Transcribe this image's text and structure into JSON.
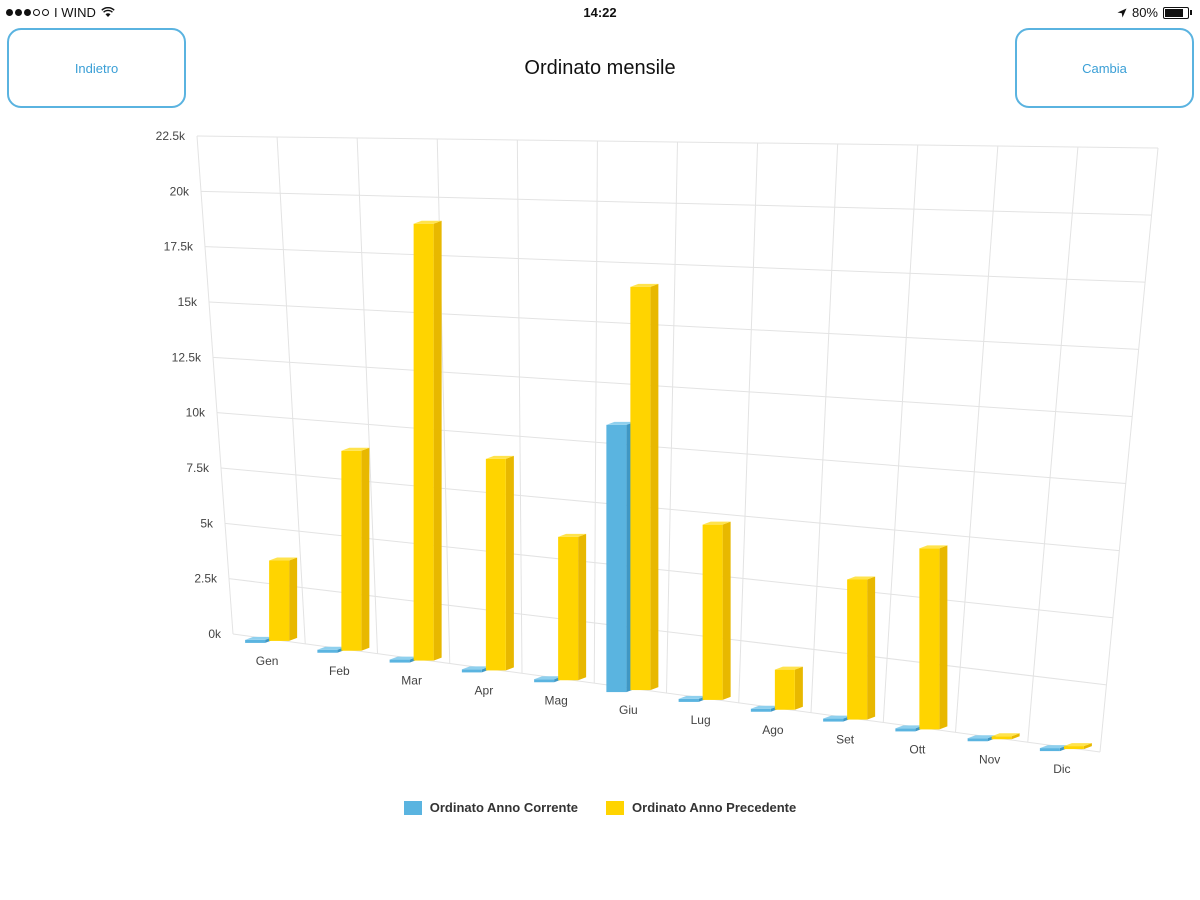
{
  "status_bar": {
    "carrier": "I WIND",
    "time": "14:22",
    "battery": "80%",
    "battery_level": 0.8
  },
  "header": {
    "back_label": "Indietro",
    "title": "Ordinato mensile",
    "change_label": "Cambia"
  },
  "icons": {
    "wifi": "wifi-icon",
    "location": "location-arrow-icon",
    "battery": "battery-icon"
  },
  "chart_data": {
    "type": "bar",
    "title": "",
    "xlabel": "",
    "ylabel": "",
    "ylim": [
      0,
      22500
    ],
    "y_ticks": [
      0,
      2500,
      5000,
      7500,
      10000,
      12500,
      15000,
      17500,
      20000,
      22500
    ],
    "y_tick_labels": [
      "0k",
      "2.5k",
      "5k",
      "7.5k",
      "10k",
      "12.5k",
      "15k",
      "17.5k",
      "20k",
      "22.5k"
    ],
    "grid": true,
    "legend_position": "bottom",
    "categories": [
      "Gen",
      "Feb",
      "Mar",
      "Apr",
      "Mag",
      "Giu",
      "Lug",
      "Ago",
      "Set",
      "Ott",
      "Nov",
      "Dic"
    ],
    "series": [
      {
        "name": "Ordinato Anno Corrente",
        "color": "#5ab4e0",
        "values": [
          0,
          0,
          0,
          0,
          0,
          11000,
          0,
          0,
          0,
          0,
          0,
          0
        ]
      },
      {
        "name": "Ordinato Anno Precedente",
        "color": "#ffd400",
        "values": [
          3600,
          8800,
          18900,
          9000,
          6000,
          16600,
          7100,
          1600,
          5500,
          7000,
          0,
          0
        ]
      }
    ]
  }
}
